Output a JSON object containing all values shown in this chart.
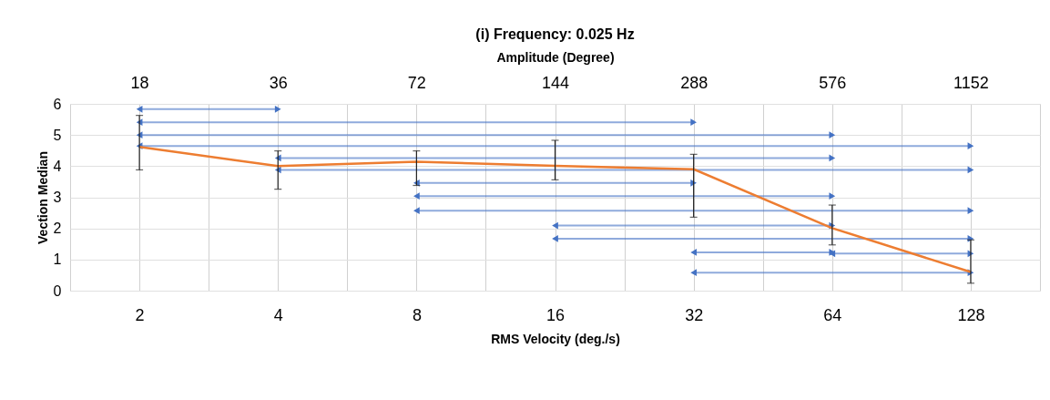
{
  "chart_data": {
    "type": "line",
    "title": "(i) Frequency: 0.025 Hz",
    "xlabel": "RMS Velocity (deg./s)",
    "ylabel": "Vection Median",
    "x2label": "Amplitude (Degree)",
    "log": "x",
    "xlim": [
      1.414,
      181.02
    ],
    "xticks": [
      2,
      {
        "value": 2.828,
        "label": null
      },
      4,
      {
        "value": 5.657,
        "label": null
      },
      8,
      {
        "value": 11.31,
        "label": null
      },
      16,
      {
        "value": 22.63,
        "label": null
      },
      32,
      {
        "value": 45.25,
        "label": null
      },
      64,
      {
        "value": 90.51,
        "label": null
      },
      128
    ],
    "annotations": [
      "18",
      "36",
      "72",
      "144",
      "288",
      "576",
      "1152"
    ],
    "ylim": [
      0,
      6
    ],
    "yticks": [
      0,
      1,
      2,
      3,
      4,
      5,
      6
    ],
    "grid": true,
    "series": [
      {
        "type": "line",
        "color": "#ed7d31",
        "marker": "none",
        "x": [
          2,
          4,
          8,
          16,
          32,
          64,
          128
        ],
        "values": [
          4.62,
          4.0,
          4.14,
          4.01,
          3.9,
          2.01,
          0.6
        ],
        "errors": [
          [
            3.88,
            5.63
          ],
          [
            3.26,
            4.49
          ],
          [
            3.38,
            4.49
          ],
          [
            3.56,
            4.83
          ],
          [
            2.36,
            4.38
          ],
          [
            1.47,
            2.75
          ],
          [
            0.24,
            1.63
          ]
        ]
      },
      {
        "type": "scatter",
        "color": "#4472c4",
        "marker": "triangle",
        "x": [
          2,
          2,
          2,
          2,
          4,
          4,
          8,
          8,
          8,
          16,
          16,
          32,
          64,
          32
        ],
        "values": [
          5.83,
          5.41,
          5.0,
          4.65,
          4.26,
          3.88,
          3.46,
          3.04,
          2.57,
          2.09,
          1.67,
          1.23,
          1.19,
          0.58
        ],
        "xerrors": [
          [
            2,
            4
          ],
          [
            2,
            32
          ],
          [
            2,
            64
          ],
          [
            2,
            128
          ],
          [
            4,
            64
          ],
          [
            4,
            128
          ],
          [
            8,
            32
          ],
          [
            8,
            64
          ],
          [
            8,
            128
          ],
          [
            16,
            64
          ],
          [
            16,
            128
          ],
          [
            32,
            64
          ],
          [
            64,
            128
          ],
          [
            32,
            128
          ]
        ]
      },
      {
        "type": "scatter",
        "color": "#4472c4",
        "marker": "triangle",
        "x": [
          4,
          32,
          64,
          128,
          64,
          128,
          32,
          64,
          128,
          64,
          128,
          64,
          128,
          128
        ],
        "values": [
          5.83,
          5.41,
          5.0,
          4.65,
          4.26,
          3.88,
          3.46,
          3.04,
          2.57,
          2.09,
          1.67,
          1.23,
          1.19,
          0.58
        ]
      }
    ]
  }
}
